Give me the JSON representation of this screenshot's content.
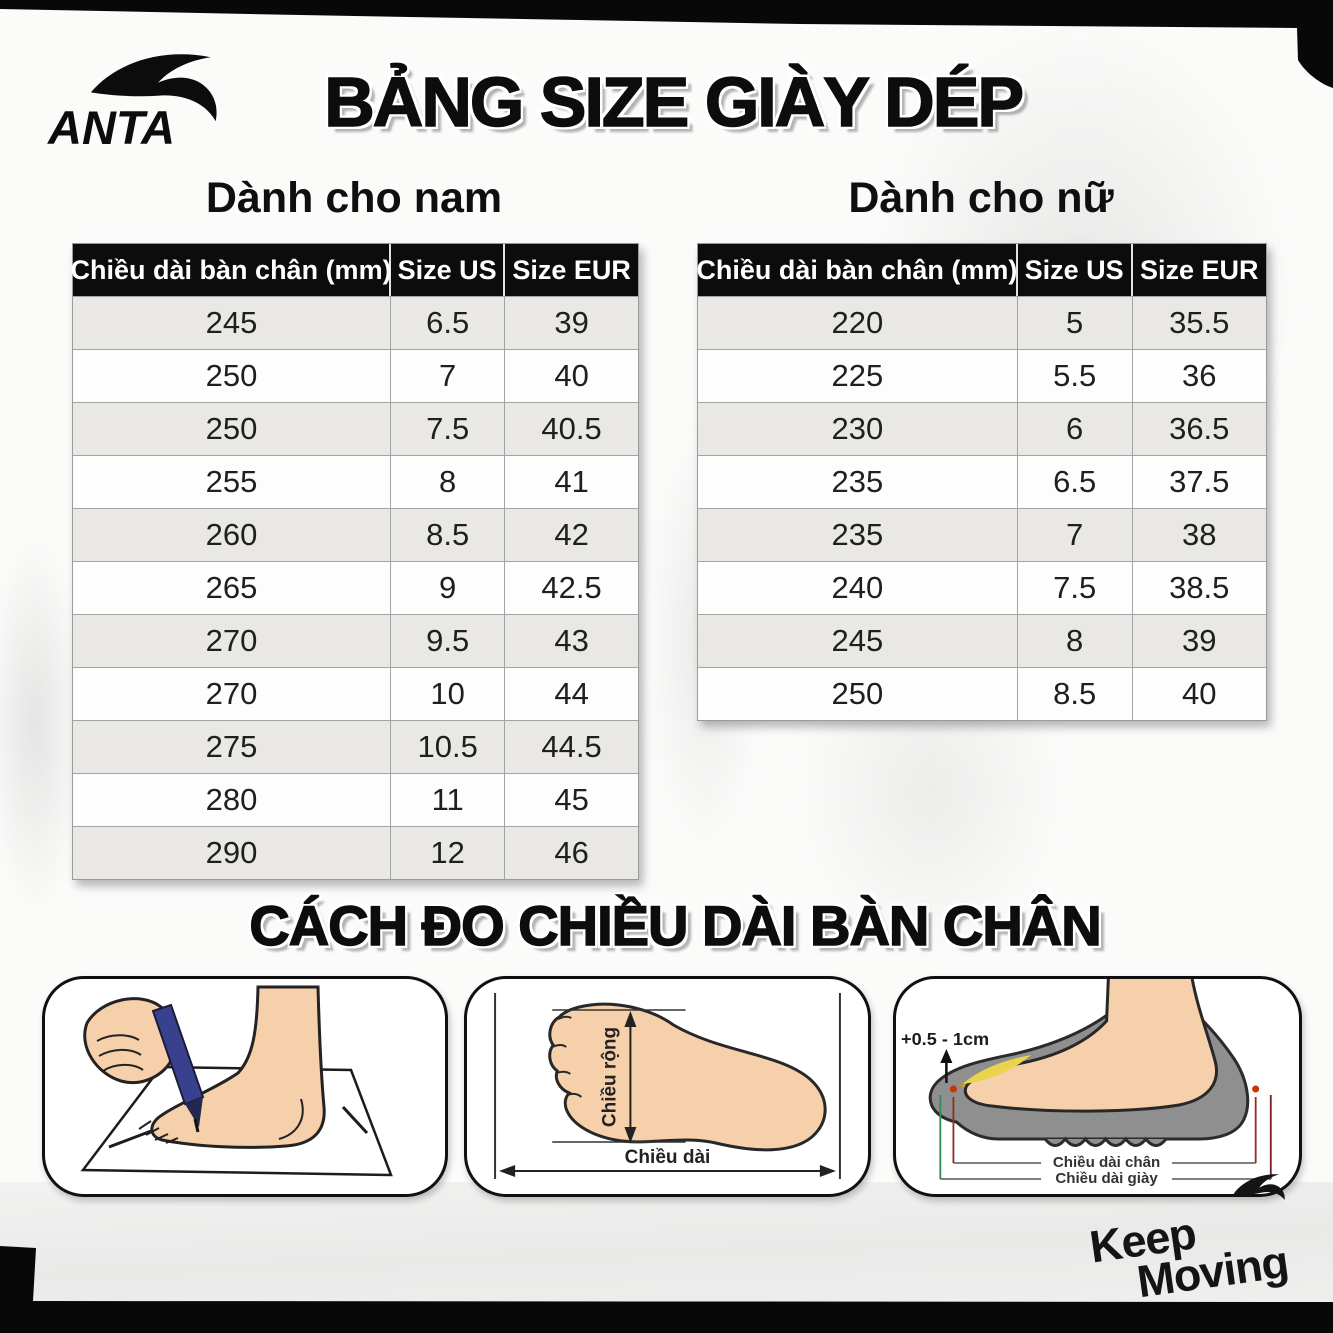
{
  "brand": {
    "logo_text": "ANTA",
    "slogan_line1": "Keep",
    "slogan_line2": "Moving"
  },
  "title": "BẢNG SIZE GIÀY DÉP",
  "men": {
    "section_title": "Dành cho nam",
    "headers": [
      "Chiều dài bàn chân (mm)",
      "Size US",
      "Size EUR"
    ],
    "rows": [
      [
        "245",
        "6.5",
        "39"
      ],
      [
        "250",
        "7",
        "40"
      ],
      [
        "250",
        "7.5",
        "40.5"
      ],
      [
        "255",
        "8",
        "41"
      ],
      [
        "260",
        "8.5",
        "42"
      ],
      [
        "265",
        "9",
        "42.5"
      ],
      [
        "270",
        "9.5",
        "43"
      ],
      [
        "270",
        "10",
        "44"
      ],
      [
        "275",
        "10.5",
        "44.5"
      ],
      [
        "280",
        "11",
        "45"
      ],
      [
        "290",
        "12",
        "46"
      ]
    ]
  },
  "women": {
    "section_title": "Dành cho nữ",
    "headers": [
      "Chiều dài bàn chân (mm)",
      "Size US",
      "Size EUR"
    ],
    "rows": [
      [
        "220",
        "5",
        "35.5"
      ],
      [
        "225",
        "5.5",
        "36"
      ],
      [
        "230",
        "6",
        "36.5"
      ],
      [
        "235",
        "6.5",
        "37.5"
      ],
      [
        "235",
        "7",
        "38"
      ],
      [
        "240",
        "7.5",
        "38.5"
      ],
      [
        "245",
        "8",
        "39"
      ],
      [
        "250",
        "8.5",
        "40"
      ]
    ]
  },
  "measure": {
    "section_title": "CÁCH ĐO CHIỀU DÀI BÀN CHÂN",
    "width_label": "Chiều rộng",
    "length_label": "Chiều dài",
    "allowance_label": "+0.5 - 1cm",
    "foot_length_label": "Chiều dài chân",
    "shoe_length_label": "Chiều dài giày"
  },
  "colors": {
    "header_black": "#0c0c0c",
    "row_alt_gray": "#e9e8e5",
    "skin_tone": "#f6cfab",
    "pen_blue": "#39418f",
    "insole_yellow": "#e9d44c",
    "shoe_gray": "#8f8f8f"
  }
}
